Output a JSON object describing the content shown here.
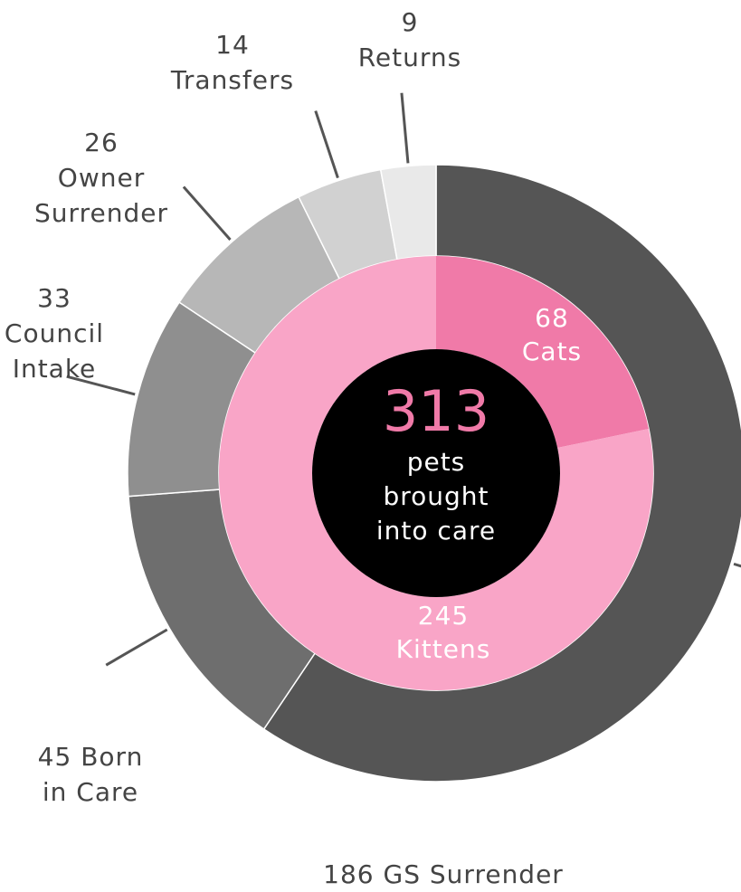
{
  "chart_data": {
    "type": "nested-donut",
    "center_value": 313,
    "center_label": "pets brought into care",
    "outer": {
      "categories": [
        "GS Surrender",
        "Born in Care",
        "Council Intake",
        "Owner Surrender",
        "Transfers",
        "Returns"
      ],
      "values": [
        186,
        45,
        33,
        26,
        14,
        9
      ],
      "colors": [
        "#555555",
        "#6e6e6e",
        "#8f8f8f",
        "#b7b7b7",
        "#d1d1d1",
        "#e9e9e9"
      ]
    },
    "inner": {
      "categories": [
        "Cats",
        "Kittens"
      ],
      "values": [
        68,
        245
      ],
      "colors": [
        "#f07aa8",
        "#f9a5c7"
      ]
    }
  }
}
